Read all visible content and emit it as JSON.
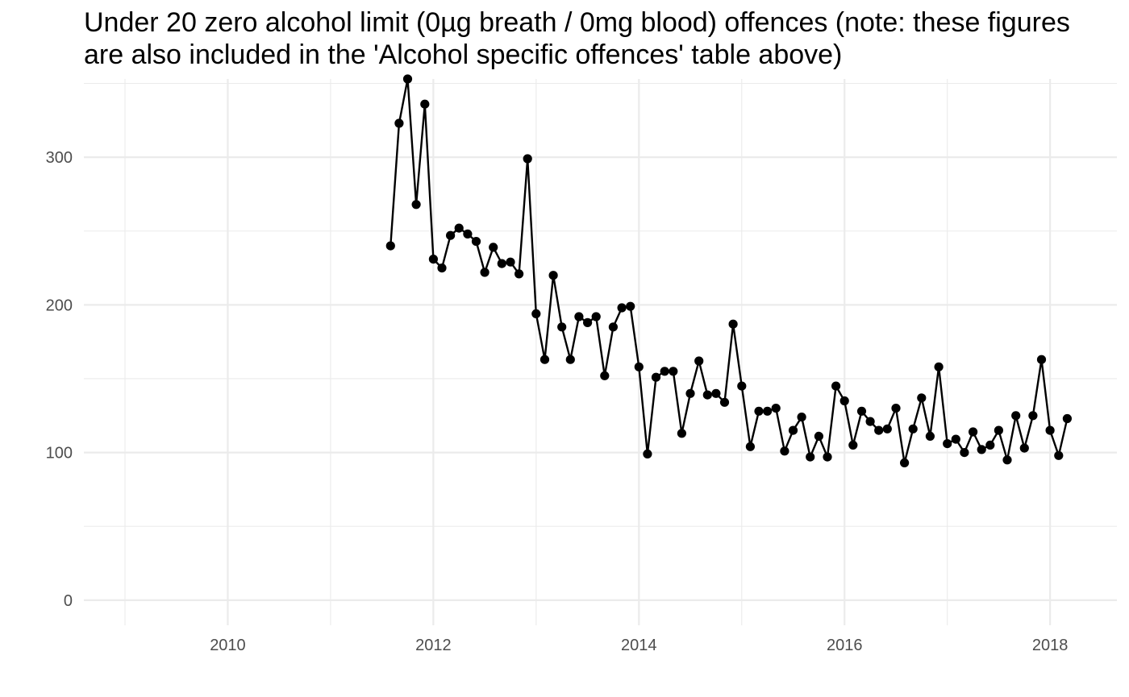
{
  "chart_data": {
    "type": "line",
    "title": "Under 20 zero alcohol limit (0µg breath / 0mg blood) offences (note: these figures are also included in the 'Alcohol specific offences' table above)",
    "xlabel": "",
    "ylabel": "",
    "x_ticks": [
      2010,
      2012,
      2014,
      2016,
      2018
    ],
    "y_ticks": [
      0,
      100,
      200,
      300
    ],
    "xlim": [
      2008.6,
      2018.65
    ],
    "ylim": [
      -17,
      353
    ],
    "grid": true,
    "legend": "none",
    "series": [
      {
        "color": "#000000",
        "points": [
          [
            "2011-08",
            240
          ],
          [
            "2011-09",
            323
          ],
          [
            "2011-10",
            353
          ],
          [
            "2011-11",
            268
          ],
          [
            "2011-12",
            336
          ],
          [
            "2012-01",
            231
          ],
          [
            "2012-02",
            225
          ],
          [
            "2012-03",
            247
          ],
          [
            "2012-04",
            252
          ],
          [
            "2012-05",
            248
          ],
          [
            "2012-06",
            243
          ],
          [
            "2012-07",
            222
          ],
          [
            "2012-08",
            239
          ],
          [
            "2012-09",
            228
          ],
          [
            "2012-10",
            229
          ],
          [
            "2012-11",
            221
          ],
          [
            "2012-12",
            299
          ],
          [
            "2013-01",
            194
          ],
          [
            "2013-02",
            163
          ],
          [
            "2013-03",
            220
          ],
          [
            "2013-04",
            185
          ],
          [
            "2013-05",
            163
          ],
          [
            "2013-06",
            192
          ],
          [
            "2013-07",
            188
          ],
          [
            "2013-08",
            192
          ],
          [
            "2013-09",
            152
          ],
          [
            "2013-10",
            185
          ],
          [
            "2013-11",
            198
          ],
          [
            "2013-12",
            199
          ],
          [
            "2014-01",
            158
          ],
          [
            "2014-02",
            99
          ],
          [
            "2014-03",
            151
          ],
          [
            "2014-04",
            155
          ],
          [
            "2014-05",
            155
          ],
          [
            "2014-06",
            113
          ],
          [
            "2014-07",
            140
          ],
          [
            "2014-08",
            162
          ],
          [
            "2014-09",
            139
          ],
          [
            "2014-10",
            140
          ],
          [
            "2014-11",
            134
          ],
          [
            "2014-12",
            187
          ],
          [
            "2015-01",
            145
          ],
          [
            "2015-02",
            104
          ],
          [
            "2015-03",
            128
          ],
          [
            "2015-04",
            128
          ],
          [
            "2015-05",
            130
          ],
          [
            "2015-06",
            101
          ],
          [
            "2015-07",
            115
          ],
          [
            "2015-08",
            124
          ],
          [
            "2015-09",
            97
          ],
          [
            "2015-10",
            111
          ],
          [
            "2015-11",
            97
          ],
          [
            "2015-12",
            145
          ],
          [
            "2016-01",
            135
          ],
          [
            "2016-02",
            105
          ],
          [
            "2016-03",
            128
          ],
          [
            "2016-04",
            121
          ],
          [
            "2016-05",
            115
          ],
          [
            "2016-06",
            116
          ],
          [
            "2016-07",
            130
          ],
          [
            "2016-08",
            93
          ],
          [
            "2016-09",
            116
          ],
          [
            "2016-10",
            137
          ],
          [
            "2016-11",
            111
          ],
          [
            "2016-12",
            158
          ],
          [
            "2017-01",
            106
          ],
          [
            "2017-02",
            109
          ],
          [
            "2017-03",
            100
          ],
          [
            "2017-04",
            114
          ],
          [
            "2017-05",
            102
          ],
          [
            "2017-06",
            105
          ],
          [
            "2017-07",
            115
          ],
          [
            "2017-08",
            95
          ],
          [
            "2017-09",
            125
          ],
          [
            "2017-10",
            103
          ],
          [
            "2017-11",
            125
          ],
          [
            "2017-12",
            163
          ],
          [
            "2018-01",
            115
          ],
          [
            "2018-02",
            98
          ],
          [
            "2018-03",
            123
          ]
        ]
      }
    ]
  }
}
